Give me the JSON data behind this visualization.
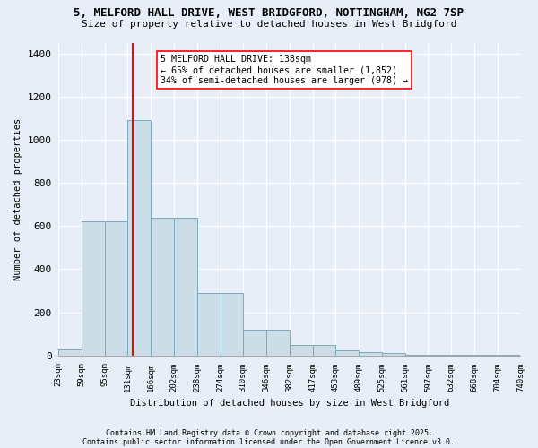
{
  "title1": "5, MELFORD HALL DRIVE, WEST BRIDGFORD, NOTTINGHAM, NG2 7SP",
  "title2": "Size of property relative to detached houses in West Bridgford",
  "xlabel": "Distribution of detached houses by size in West Bridgford",
  "ylabel": "Number of detached properties",
  "bin_labels": [
    "23sqm",
    "59sqm",
    "95sqm",
    "131sqm",
    "166sqm",
    "202sqm",
    "238sqm",
    "274sqm",
    "310sqm",
    "346sqm",
    "382sqm",
    "417sqm",
    "453sqm",
    "489sqm",
    "525sqm",
    "561sqm",
    "597sqm",
    "632sqm",
    "668sqm",
    "704sqm",
    "740sqm"
  ],
  "bar_values": [
    30,
    620,
    620,
    1090,
    640,
    640,
    290,
    290,
    120,
    120,
    50,
    50,
    25,
    15,
    10,
    5,
    5,
    2,
    2,
    2,
    0
  ],
  "bar_color": "#ccdde8",
  "bar_edge_color": "#7aaabb",
  "annotation_text": "5 MELFORD HALL DRIVE: 138sqm\n← 65% of detached houses are smaller (1,852)\n34% of semi-detached houses are larger (978) →",
  "vline_color": "red",
  "annotation_box_color": "white",
  "annotation_box_edge": "red",
  "ylim": [
    0,
    1450
  ],
  "yticks": [
    0,
    200,
    400,
    600,
    800,
    1000,
    1200,
    1400
  ],
  "footnote1": "Contains HM Land Registry data © Crown copyright and database right 2025.",
  "footnote2": "Contains public sector information licensed under the Open Government Licence v3.0.",
  "bg_color": "#e8eef8"
}
